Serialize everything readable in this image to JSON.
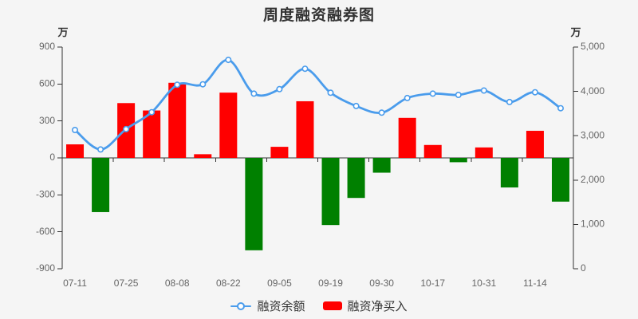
{
  "title": "周度融资融券图",
  "left_axis": {
    "unit": "万",
    "ticks": [
      "900",
      "600",
      "300",
      "0",
      "-300",
      "-600",
      "-900"
    ]
  },
  "right_axis": {
    "unit": "万",
    "ticks": [
      "5,000",
      "4,000",
      "3,000",
      "2,000",
      "1,000",
      "0"
    ]
  },
  "legend": [
    {
      "label": "融资余额",
      "type": "line"
    },
    {
      "label": "融资净买入",
      "type": "bar"
    }
  ],
  "colors": {
    "positive_bar": "#ff0000",
    "negative_bar": "#008000",
    "line": "#4a9cec",
    "marker_fill": "#ffffff",
    "axis_line": "#333333",
    "tick_label": "#666666",
    "title_text": "#333333",
    "background": "#f5f5f5"
  },
  "chart_data": {
    "type": "bar",
    "note": "combo chart: bars = net buy (left axis), smooth line = balance (right axis)",
    "categories": [
      "07-11",
      "",
      "07-25",
      "",
      "08-08",
      "",
      "08-22",
      "",
      "09-05",
      "",
      "09-19",
      "",
      "09-30",
      "",
      "10-17",
      "",
      "10-31",
      "",
      "11-14",
      ""
    ],
    "series": [
      {
        "name": "融资余额",
        "type": "line",
        "axis": "right",
        "values": [
          3130,
          2690,
          3150,
          3530,
          4150,
          4160,
          4710,
          3950,
          4050,
          4510,
          3970,
          3670,
          3520,
          3850,
          3950,
          3920,
          4020,
          3760,
          3980,
          3620
        ]
      },
      {
        "name": "融资净买入",
        "type": "bar",
        "axis": "left",
        "values": [
          110,
          -440,
          445,
          385,
          610,
          30,
          530,
          -750,
          90,
          460,
          -545,
          -325,
          -120,
          325,
          105,
          -35,
          85,
          -240,
          220,
          -355
        ]
      }
    ],
    "title": "周度融资融券图",
    "xlabel": "",
    "ylabel_left": "万",
    "ylabel_right": "万",
    "left_ylim": [
      -900,
      900
    ],
    "right_ylim": [
      0,
      5000
    ],
    "grid": false,
    "legend_position": "bottom"
  }
}
